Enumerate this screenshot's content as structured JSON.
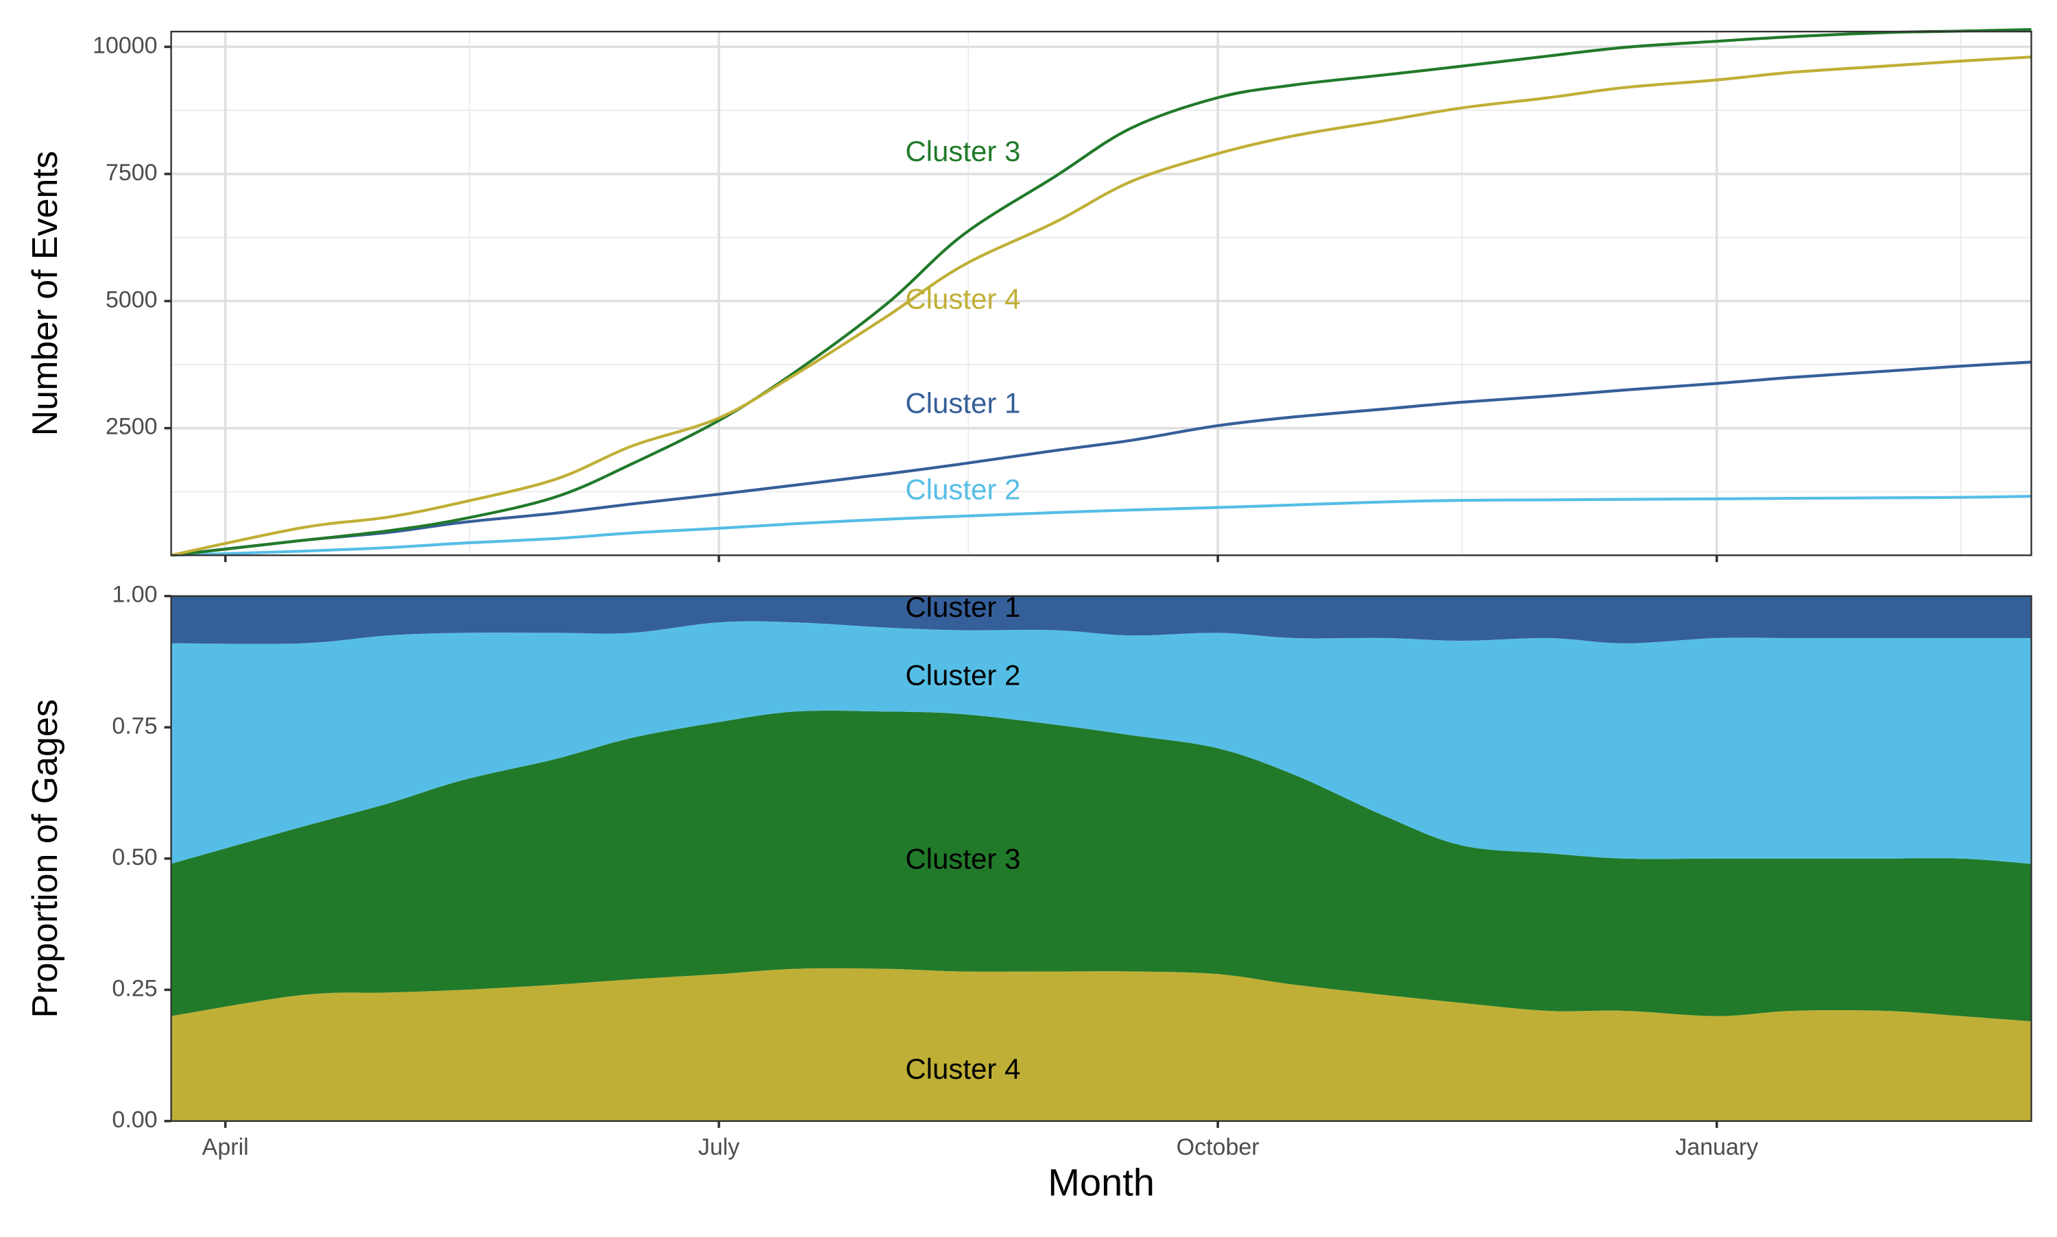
{
  "chart_data": [
    {
      "type": "line",
      "ylabel": "Number of Events",
      "xlabel": "",
      "ylim": [
        0,
        10300
      ],
      "yticks": [
        2500,
        5000,
        7500,
        10000
      ],
      "grid": true,
      "legend": "none (direct labels)",
      "x": [
        "Mar 22",
        "Apr 15",
        "May 1",
        "May 15",
        "Jun 1",
        "Jun 15",
        "Jul 1",
        "Jul 15",
        "Aug 1",
        "Aug 15",
        "Sep 1",
        "Sep 15",
        "Oct 1",
        "Oct 15",
        "Nov 1",
        "Nov 15",
        "Dec 1",
        "Dec 15",
        "Jan 1",
        "Jan 15",
        "Feb 1",
        "Feb 15",
        "Feb 28"
      ],
      "series": [
        {
          "name": "Cluster 1",
          "color": "#355F99",
          "values": [
            0,
            290,
            450,
            650,
            830,
            1010,
            1200,
            1380,
            1600,
            1800,
            2060,
            2260,
            2550,
            2720,
            2880,
            3010,
            3130,
            3250,
            3380,
            3500,
            3620,
            3720,
            3800
          ]
        },
        {
          "name": "Cluster 2",
          "color": "#56BEE6",
          "values": [
            0,
            80,
            150,
            240,
            330,
            440,
            530,
            620,
            710,
            770,
            840,
            890,
            940,
            990,
            1050,
            1080,
            1090,
            1100,
            1110,
            1120,
            1130,
            1140,
            1160
          ]
        },
        {
          "name": "Cluster 3",
          "color": "#217A2A",
          "values": [
            0,
            290,
            480,
            720,
            1150,
            1800,
            2650,
            3600,
            4950,
            6300,
            7450,
            8400,
            9000,
            9250,
            9450,
            9620,
            9820,
            9990,
            10110,
            10200,
            10280,
            10310,
            10340
          ]
        },
        {
          "name": "Cluster 4",
          "color": "#C0AF36",
          "values": [
            0,
            540,
            750,
            1050,
            1500,
            2150,
            2700,
            3550,
            4700,
            5700,
            6550,
            7350,
            7900,
            8250,
            8550,
            8800,
            9000,
            9200,
            9350,
            9500,
            9620,
            9720,
            9800
          ]
        }
      ],
      "labels": [
        {
          "text": "Cluster 3",
          "x": "Aug 15",
          "y": 7900,
          "color": "#217A2A"
        },
        {
          "text": "Cluster 4",
          "x": "Aug 15",
          "y": 5000,
          "color": "#C0AF36"
        },
        {
          "text": "Cluster 1",
          "x": "Aug 15",
          "y": 2950,
          "color": "#355F99"
        },
        {
          "text": "Cluster 2",
          "x": "Aug 15",
          "y": 1250,
          "color": "#56BEE6"
        }
      ]
    },
    {
      "type": "area",
      "stacked": true,
      "ylabel": "Proportion of Gages",
      "xlabel": "Month",
      "ylim": [
        0,
        1
      ],
      "yticks": [
        0,
        0.25,
        0.5,
        0.75,
        1
      ],
      "ytick_labels": [
        "0.00",
        "0.25",
        "0.50",
        "0.75",
        "1.00"
      ],
      "xticks": [
        "Apr 1",
        "Jul 1",
        "Oct 1",
        "Jan 1"
      ],
      "xtick_labels": [
        "April",
        "July",
        "October",
        "January"
      ],
      "grid": false,
      "x": [
        "Mar 22",
        "Apr 15",
        "May 1",
        "May 15",
        "Jun 1",
        "Jun 15",
        "Jul 1",
        "Jul 15",
        "Aug 1",
        "Aug 15",
        "Sep 1",
        "Sep 15",
        "Oct 1",
        "Oct 15",
        "Nov 1",
        "Nov 15",
        "Dec 1",
        "Dec 15",
        "Jan 1",
        "Jan 15",
        "Feb 1",
        "Feb 15",
        "Feb 28"
      ],
      "series": [
        {
          "name": "Cluster 4",
          "color": "#C0AF36",
          "values": [
            0.2,
            0.24,
            0.245,
            0.25,
            0.26,
            0.27,
            0.28,
            0.29,
            0.29,
            0.285,
            0.285,
            0.285,
            0.28,
            0.26,
            0.24,
            0.225,
            0.21,
            0.21,
            0.2,
            0.21,
            0.21,
            0.2,
            0.19
          ]
        },
        {
          "name": "Cluster 3",
          "color": "#217A2A",
          "values": [
            0.29,
            0.32,
            0.36,
            0.4,
            0.43,
            0.46,
            0.48,
            0.49,
            0.49,
            0.49,
            0.47,
            0.45,
            0.43,
            0.4,
            0.34,
            0.3,
            0.3,
            0.29,
            0.3,
            0.29,
            0.29,
            0.3,
            0.3
          ]
        },
        {
          "name": "Cluster 2",
          "color": "#56BEE6",
          "values": [
            0.42,
            0.35,
            0.32,
            0.28,
            0.24,
            0.2,
            0.19,
            0.17,
            0.16,
            0.16,
            0.18,
            0.19,
            0.22,
            0.26,
            0.34,
            0.39,
            0.41,
            0.41,
            0.42,
            0.42,
            0.42,
            0.42,
            0.43
          ]
        },
        {
          "name": "Cluster 1",
          "color": "#355F99",
          "values": [
            0.09,
            0.09,
            0.085,
            0.08,
            0.07,
            0.07,
            0.05,
            0.05,
            0.06,
            0.065,
            0.065,
            0.075,
            0.07,
            0.08,
            0.08,
            0.085,
            0.08,
            0.09,
            0.08,
            0.08,
            0.08,
            0.08,
            0.08
          ]
        }
      ],
      "labels": [
        {
          "text": "Cluster 1",
          "x": "Aug 15",
          "y": 0.975
        },
        {
          "text": "Cluster 2",
          "x": "Aug 15",
          "y": 0.845
        },
        {
          "text": "Cluster 3",
          "x": "Aug 15",
          "y": 0.495
        },
        {
          "text": "Cluster 4",
          "x": "Aug 15",
          "y": 0.095
        }
      ]
    }
  ]
}
